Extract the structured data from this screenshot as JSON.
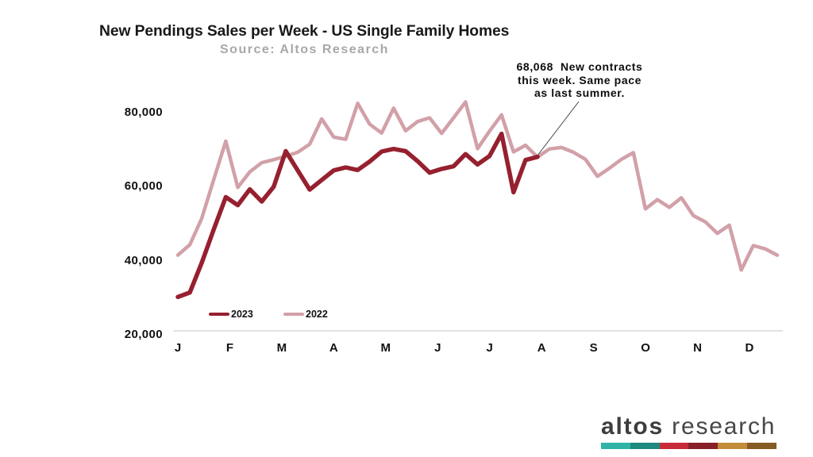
{
  "title": "New Pendings Sales per Week - US Single Family Homes",
  "subtitle": "Source: Altos Research",
  "annotation": {
    "line1": "68,068  New contracts",
    "line2": "this week. Same pace",
    "line3": "as last summer."
  },
  "legend": [
    {
      "label": "2023",
      "color": "#96202f"
    },
    {
      "label": "2022",
      "color": "#d2a0a8"
    }
  ],
  "logo": {
    "word1": "altos",
    "word2": "research",
    "bar_colors": [
      "#2fb3a7",
      "#1f8a80",
      "#c92a38",
      "#891f27",
      "#c38c3a",
      "#855a23"
    ]
  },
  "chart_data": {
    "type": "line",
    "title": "New Pendings Sales per Week - US Single Family Homes",
    "subtitle": "Source: Altos Research",
    "x_axis_labels": [
      "J",
      "F",
      "M",
      "A",
      "M",
      "J",
      "J",
      "A",
      "S",
      "O",
      "N",
      "D"
    ],
    "y_tick_labels": [
      "80,000",
      "60,000",
      "40,000",
      "20,000"
    ],
    "y_tick_values": [
      80000,
      60000,
      40000,
      20000
    ],
    "ylim": [
      20000,
      85000
    ],
    "x_unit": "week",
    "annotation_value": "68,068",
    "series": [
      {
        "name": "2023",
        "color": "#96202f",
        "values": [
          30200,
          31400,
          39500,
          48500,
          57200,
          55000,
          59300,
          56000,
          60000,
          69600,
          64400,
          59200,
          61800,
          64400,
          65200,
          64500,
          66800,
          69500,
          70200,
          69600,
          66900,
          63800,
          64800,
          65500,
          68800,
          66000,
          68300,
          74300,
          58500,
          67200,
          68068
        ]
      },
      {
        "name": "2022",
        "color": "#d2a0a8",
        "values": [
          41500,
          44300,
          51500,
          62000,
          72300,
          59800,
          64000,
          66500,
          67300,
          68200,
          69300,
          71500,
          78300,
          73400,
          72800,
          82500,
          76900,
          74500,
          81200,
          75100,
          77600,
          78600,
          74400,
          78600,
          82900,
          70300,
          75000,
          79400,
          69400,
          71200,
          68000,
          70200,
          70600,
          69300,
          67400,
          62800,
          65000,
          67400,
          69200,
          54000,
          56500,
          54400,
          57000,
          52200,
          50500,
          47400,
          49600,
          37500,
          44100,
          43200,
          41500
        ]
      }
    ]
  }
}
